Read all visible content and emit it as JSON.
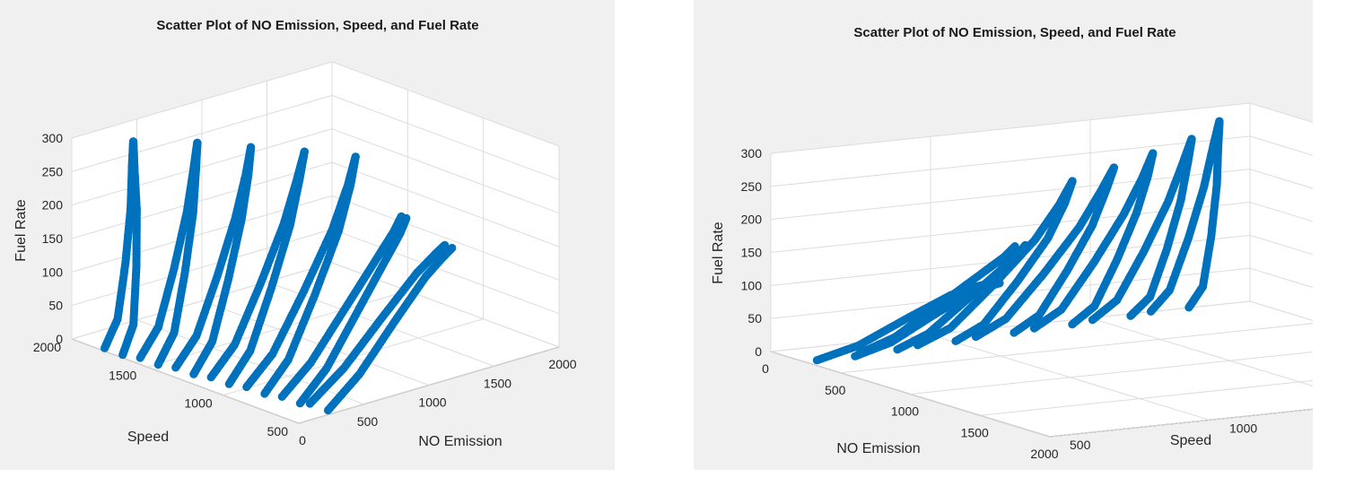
{
  "chart_data": [
    {
      "type": "scatter",
      "view": "left",
      "title": "Scatter Plot of NO Emission, Speed, and Fuel Rate",
      "xlabel": "NO Emission",
      "ylabel": "Speed",
      "zlabel": "Fuel Rate",
      "xlim": [
        0,
        2000
      ],
      "ylim": [
        500,
        2000
      ],
      "zlim": [
        0,
        300
      ],
      "xticks": [
        0,
        500,
        1000,
        1500,
        2000
      ],
      "yticks": [
        500,
        1000,
        1500,
        2000
      ],
      "zticks": [
        0,
        50,
        100,
        150,
        200,
        250,
        300
      ],
      "grid": true,
      "marker_color": "#0072BD"
    },
    {
      "type": "scatter",
      "view": "right",
      "title": "Scatter Plot of NO Emission, Speed, and Fuel Rate",
      "xlabel": "NO Emission",
      "ylabel": "Speed",
      "zlabel": "Fuel Rate",
      "xlim": [
        0,
        2000
      ],
      "ylim": [
        500,
        2000
      ],
      "zlim": [
        0,
        300
      ],
      "xticks": [
        0,
        500,
        1000,
        1500,
        2000
      ],
      "yticks": [
        500,
        1000,
        1500,
        2000
      ],
      "zticks": [
        0,
        50,
        100,
        150,
        200,
        250,
        300
      ],
      "grid": true,
      "marker_color": "#0072BD"
    }
  ],
  "series_points": [
    {
      "speed": 1800,
      "no": [
        20,
        120,
        180,
        220,
        230,
        240
      ],
      "fuel": [
        2,
        40,
        120,
        200,
        260,
        300
      ]
    },
    {
      "speed": 1600,
      "no": [
        60,
        200,
        320,
        420,
        470,
        500
      ],
      "fuel": [
        2,
        40,
        120,
        200,
        260,
        300
      ]
    },
    {
      "speed": 1400,
      "no": [
        100,
        260,
        420,
        560,
        640,
        680
      ],
      "fuel": [
        2,
        40,
        120,
        200,
        260,
        300
      ]
    },
    {
      "speed": 1200,
      "no": [
        140,
        320,
        520,
        700,
        800,
        860
      ],
      "fuel": [
        2,
        40,
        120,
        200,
        260,
        300
      ]
    },
    {
      "speed": 1000,
      "no": [
        180,
        380,
        620,
        840,
        960,
        1020
      ],
      "fuel": [
        2,
        40,
        120,
        200,
        260,
        300
      ]
    },
    {
      "speed": 800,
      "no": [
        220,
        440,
        720,
        960,
        1080,
        1140
      ],
      "fuel": [
        2,
        40,
        110,
        170,
        200,
        220
      ]
    },
    {
      "speed": 650,
      "no": [
        260,
        520,
        820,
        1080,
        1220,
        1300
      ],
      "fuel": [
        2,
        40,
        100,
        150,
        170,
        180
      ]
    }
  ]
}
